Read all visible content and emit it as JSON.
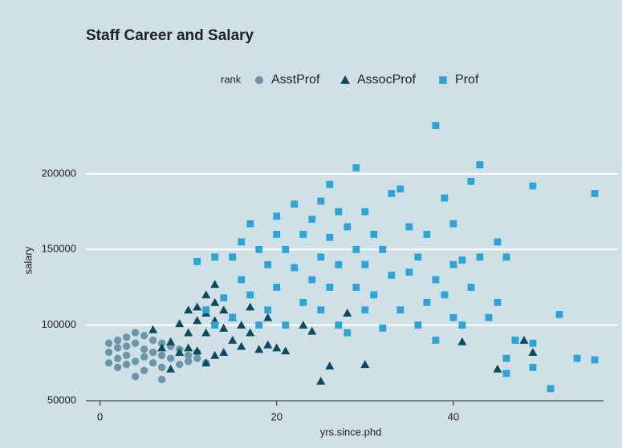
{
  "chart_data": {
    "type": "scatter",
    "title": "Staff Career and Salary",
    "x_label": "yrs.since.phd",
    "y_label": "salary",
    "legend_title": "rank",
    "legend_position": "top",
    "xlim": [
      -1.6,
      57
    ],
    "xticks": [
      0,
      20,
      40
    ],
    "ylim": [
      50000,
      236000
    ],
    "yticks": [
      50000,
      100000,
      150000,
      200000
    ],
    "grid": true,
    "series": [
      {
        "name": "AsstProf",
        "color": "#6c95a8",
        "shape": "circle",
        "x": [
          1,
          1,
          1,
          2,
          2,
          2,
          2,
          3,
          3,
          3,
          3,
          4,
          4,
          4,
          4,
          5,
          5,
          5,
          5,
          6,
          6,
          6,
          7,
          7,
          7,
          7,
          8,
          8,
          9,
          9,
          10,
          10,
          11,
          11,
          12
        ],
        "values": [
          88000,
          82000,
          75000,
          90000,
          85000,
          78000,
          72000,
          92000,
          86000,
          80000,
          74000,
          95000,
          88000,
          76000,
          66000,
          93000,
          84000,
          79000,
          70000,
          90000,
          82000,
          75000,
          88000,
          80000,
          72000,
          64000,
          86000,
          78000,
          84000,
          74000,
          80000,
          76000,
          82000,
          78000,
          75000
        ]
      },
      {
        "name": "AssocProf",
        "color": "#0d4a5e",
        "shape": "triangle",
        "x": [
          6,
          7,
          8,
          8,
          9,
          9,
          10,
          10,
          10,
          11,
          11,
          11,
          12,
          12,
          12,
          12,
          13,
          13,
          13,
          13,
          14,
          14,
          14,
          15,
          15,
          16,
          16,
          17,
          17,
          18,
          19,
          19,
          20,
          21,
          23,
          24,
          25,
          26,
          28,
          30,
          41,
          45,
          48,
          49
        ],
        "values": [
          97000,
          85000,
          89000,
          71000,
          101000,
          82000,
          110000,
          95000,
          85000,
          112000,
          103000,
          83000,
          120000,
          108000,
          95000,
          75000,
          127000,
          115000,
          103000,
          80000,
          110000,
          98000,
          82000,
          105000,
          90000,
          100000,
          86000,
          112000,
          95000,
          84000,
          105000,
          87000,
          85000,
          83000,
          100000,
          96000,
          63000,
          73000,
          108000,
          74000,
          89000,
          71000,
          90000,
          82000
        ]
      },
      {
        "name": "Prof",
        "color": "#2ea3d5",
        "shape": "square",
        "x": [
          11,
          12,
          13,
          13,
          14,
          15,
          15,
          16,
          16,
          17,
          17,
          18,
          18,
          19,
          19,
          20,
          20,
          20,
          21,
          21,
          22,
          22,
          23,
          23,
          24,
          24,
          25,
          25,
          25,
          26,
          26,
          26,
          27,
          27,
          27,
          28,
          28,
          29,
          29,
          29,
          30,
          30,
          30,
          31,
          31,
          32,
          32,
          33,
          33,
          34,
          34,
          35,
          35,
          36,
          36,
          37,
          37,
          38,
          38,
          38,
          39,
          39,
          40,
          40,
          40,
          41,
          41,
          42,
          42,
          43,
          43,
          44,
          45,
          45,
          46,
          46,
          46,
          47,
          49,
          49,
          49,
          51,
          52,
          54,
          56,
          56
        ],
        "values": [
          142000,
          110000,
          100000,
          145000,
          118000,
          145000,
          105000,
          130000,
          155000,
          167000,
          120000,
          150000,
          100000,
          140000,
          110000,
          160000,
          172000,
          125000,
          150000,
          100000,
          180000,
          138000,
          160000,
          115000,
          170000,
          130000,
          182000,
          145000,
          110000,
          193000,
          158000,
          125000,
          175000,
          140000,
          100000,
          165000,
          95000,
          150000,
          204000,
          125000,
          175000,
          140000,
          110000,
          160000,
          120000,
          150000,
          98000,
          187000,
          133000,
          190000,
          110000,
          165000,
          135000,
          100000,
          145000,
          160000,
          115000,
          232000,
          130000,
          90000,
          184000,
          120000,
          140000,
          167000,
          105000,
          143000,
          100000,
          195000,
          125000,
          206000,
          145000,
          105000,
          155000,
          115000,
          145000,
          78000,
          68000,
          90000,
          192000,
          72000,
          88000,
          58000,
          107000,
          78000,
          187000,
          77000
        ]
      }
    ]
  }
}
